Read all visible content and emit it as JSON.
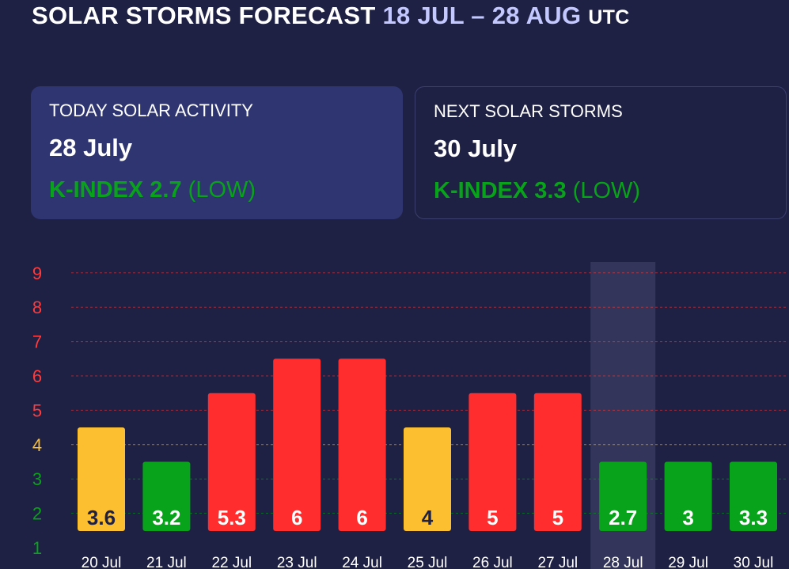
{
  "header": {
    "title_main": "SOLAR STORMS FORECAST",
    "title_range": "18 JUL – 28 AUG",
    "title_suffix": "UTC"
  },
  "cards": {
    "today": {
      "label": "TODAY SOLAR ACTIVITY",
      "date": "28 July",
      "k_label": "K-INDEX 2.7",
      "k_level": "(LOW)"
    },
    "next": {
      "label": "NEXT SOLAR STORMS",
      "date": "30 July",
      "k_label": "K-INDEX 3.3",
      "k_level": "(LOW)"
    }
  },
  "chart_data": {
    "type": "bar",
    "categories": [
      "20 Jul",
      "21 Jul",
      "22 Jul",
      "23 Jul",
      "24 Jul",
      "25 Jul",
      "26 Jul",
      "27 Jul",
      "28 Jul",
      "29 Jul",
      "30 Jul"
    ],
    "values": [
      3.6,
      3.2,
      5.3,
      6,
      6,
      4,
      5,
      5,
      2.7,
      3,
      3.3
    ],
    "heights": [
      4.5,
      3.5,
      5.5,
      6.5,
      6.5,
      4.5,
      5.5,
      5.5,
      3.5,
      3.5,
      3.5
    ],
    "colors": [
      "#fbbf2f",
      "#08a21b",
      "#ff2d2d",
      "#ff2d2d",
      "#ff2d2d",
      "#fbbf2f",
      "#ff2d2d",
      "#ff2d2d",
      "#08a21b",
      "#08a21b",
      "#08a21b"
    ],
    "label_colors": [
      "#1e2044",
      "#ffffff",
      "#ffffff",
      "#ffffff",
      "#ffffff",
      "#1e2044",
      "#ffffff",
      "#ffffff",
      "#ffffff",
      "#ffffff",
      "#ffffff"
    ],
    "y_ticks": [
      1,
      2,
      3,
      4,
      5,
      6,
      7,
      8,
      9
    ],
    "y_tick_colors": [
      "#08a21b",
      "#08a21b",
      "#08a21b",
      "#fbbf2f",
      "#ff3b3b",
      "#ff3b3b",
      "#ff3b3b",
      "#ff3b3b",
      "#ff3b3b"
    ],
    "ylim": [
      1,
      9
    ],
    "highlight_index": 8,
    "grid": true
  }
}
